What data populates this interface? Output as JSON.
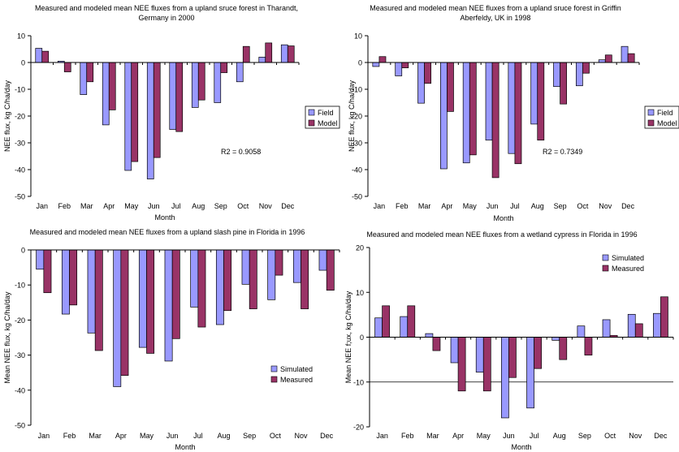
{
  "chart_data": [
    {
      "type": "bar",
      "title": "Measured and modeled mean NEE fluxes from a upland sruce forest in Tharandt, Germany in 2000",
      "title_lines": [
        "Measured and modeled mean NEE fluxes from a upland sruce forest in Tharandt,",
        "Germany in 2000"
      ],
      "xlabel": "Month",
      "ylabel": "NEE flux, kg C/ha/day",
      "ylim": [
        -50,
        10
      ],
      "ytick_step": 10,
      "yticks": [
        "10",
        "0",
        "-10",
        "-20",
        "-30",
        "-40",
        "-50"
      ],
      "categories": [
        "Jan",
        "Feb",
        "Mar",
        "Apr",
        "May",
        "Jun",
        "Jul",
        "Aug",
        "Sep",
        "Oct",
        "Nov",
        "Dec"
      ],
      "series": [
        {
          "name": "Field",
          "color": "#9999ff",
          "values": [
            5.3,
            0.5,
            -12.0,
            -23.3,
            -40.3,
            -43.5,
            -25.0,
            -16.8,
            -15.0,
            -7.2,
            2.0,
            6.6
          ]
        },
        {
          "name": "Model",
          "color": "#993366",
          "values": [
            4.2,
            -3.5,
            -7.2,
            -17.7,
            -37.0,
            -35.5,
            -25.8,
            -14.0,
            -3.8,
            6.0,
            7.3,
            6.2
          ]
        }
      ],
      "annotation": "R2 = 0.9058",
      "legend": "right"
    },
    {
      "type": "bar",
      "title": "Measured and modeled mean NEE fluxes from a upland sruce forest in Griffin Aberfeldy, UK in 1998",
      "title_lines": [
        "Measured and modeled mean NEE fluxes from a upland sruce forest in Griffin",
        "Aberfeldy, UK in 1998"
      ],
      "xlabel": "Month",
      "ylabel": "NEE flux, kg C/ha/day",
      "ylim": [
        -50,
        10
      ],
      "ytick_step": 10,
      "yticks": [
        "10",
        "0",
        "-10",
        "-20",
        "-30",
        "-40",
        "-50"
      ],
      "categories": [
        "Jan",
        "Feb",
        "Mar",
        "Apr",
        "May",
        "Jun",
        "Jul",
        "Aug",
        "Sep",
        "Oct",
        "Nov",
        "Dec"
      ],
      "series": [
        {
          "name": "Field",
          "color": "#9999ff",
          "values": [
            -1.5,
            -5.0,
            -15.2,
            -39.7,
            -37.5,
            -29.0,
            -34.0,
            -23.0,
            -9.0,
            -8.7,
            1.0,
            6.0
          ]
        },
        {
          "name": "Model",
          "color": "#993366",
          "values": [
            2.2,
            -2.0,
            -7.8,
            -18.3,
            -34.5,
            -43.0,
            -37.8,
            -29.0,
            -15.5,
            -4.0,
            2.8,
            3.3
          ]
        }
      ],
      "annotation": "R2 = 0.7349",
      "legend": "right"
    },
    {
      "type": "bar",
      "title": "Measured and modeled mean NEE fluxes from a upland slash pine in Florida in 1996",
      "title_lines": [
        "Measured and modeled mean NEE fluxes from a upland slash pine in Florida in 1996"
      ],
      "xlabel": "Month",
      "ylabel": "Mean NEE flux, kg C/ha/day",
      "ylim": [
        -50,
        0
      ],
      "ytick_step": 10,
      "yticks": [
        "0",
        "-10",
        "-20",
        "-30",
        "-40",
        "-50"
      ],
      "categories": [
        "Jan",
        "Feb",
        "Mar",
        "Apr",
        "May",
        "Jun",
        "Jul",
        "Aug",
        "Sep",
        "Oct",
        "Nov",
        "Dec"
      ],
      "series": [
        {
          "name": "Simulated",
          "color": "#9999ff",
          "values": [
            -5.5,
            -18.3,
            -23.7,
            -39.0,
            -27.8,
            -31.7,
            -16.3,
            -21.3,
            -9.8,
            -14.2,
            -9.3,
            -5.8
          ]
        },
        {
          "name": "Measured",
          "color": "#993366",
          "values": [
            -12.2,
            -15.7,
            -28.7,
            -35.8,
            -29.5,
            -25.3,
            -22.0,
            -17.3,
            -16.8,
            -7.2,
            -16.8,
            -11.5
          ]
        }
      ],
      "legend": "bottom-right"
    },
    {
      "type": "bar",
      "title": "Measured and modeled mean NEE fluxes from a wetland cypress in Florida in 1996",
      "title_lines": [
        "Measured and modeled mean NEE fluxes from a wetland cypress in Florida in 1996"
      ],
      "xlabel": "Month",
      "ylabel": "Mean NEE f;ux, kg C/ha/day",
      "ylim": [
        -20,
        20
      ],
      "ytick_step": 10,
      "yticks": [
        "20",
        "10",
        "0",
        "-10",
        "-20"
      ],
      "categories": [
        "Jan",
        "Feb",
        "Mar",
        "Apr",
        "May",
        "Jun",
        "Jul",
        "Aug",
        "Sep",
        "Oct",
        "Nov",
        "Dec"
      ],
      "series": [
        {
          "name": "Simulated",
          "color": "#9999ff",
          "values": [
            4.3,
            4.6,
            0.8,
            -5.7,
            -7.8,
            -18.0,
            -15.8,
            -0.7,
            2.5,
            3.9,
            5.1,
            5.3
          ]
        },
        {
          "name": "Measured",
          "color": "#993366",
          "values": [
            7.0,
            7.0,
            -3.0,
            -12.0,
            -12.0,
            -9.0,
            -7.0,
            -5.0,
            -4.0,
            0.4,
            3.0,
            9.0
          ]
        }
      ],
      "gridline_at": -10,
      "legend": "top-right"
    }
  ]
}
